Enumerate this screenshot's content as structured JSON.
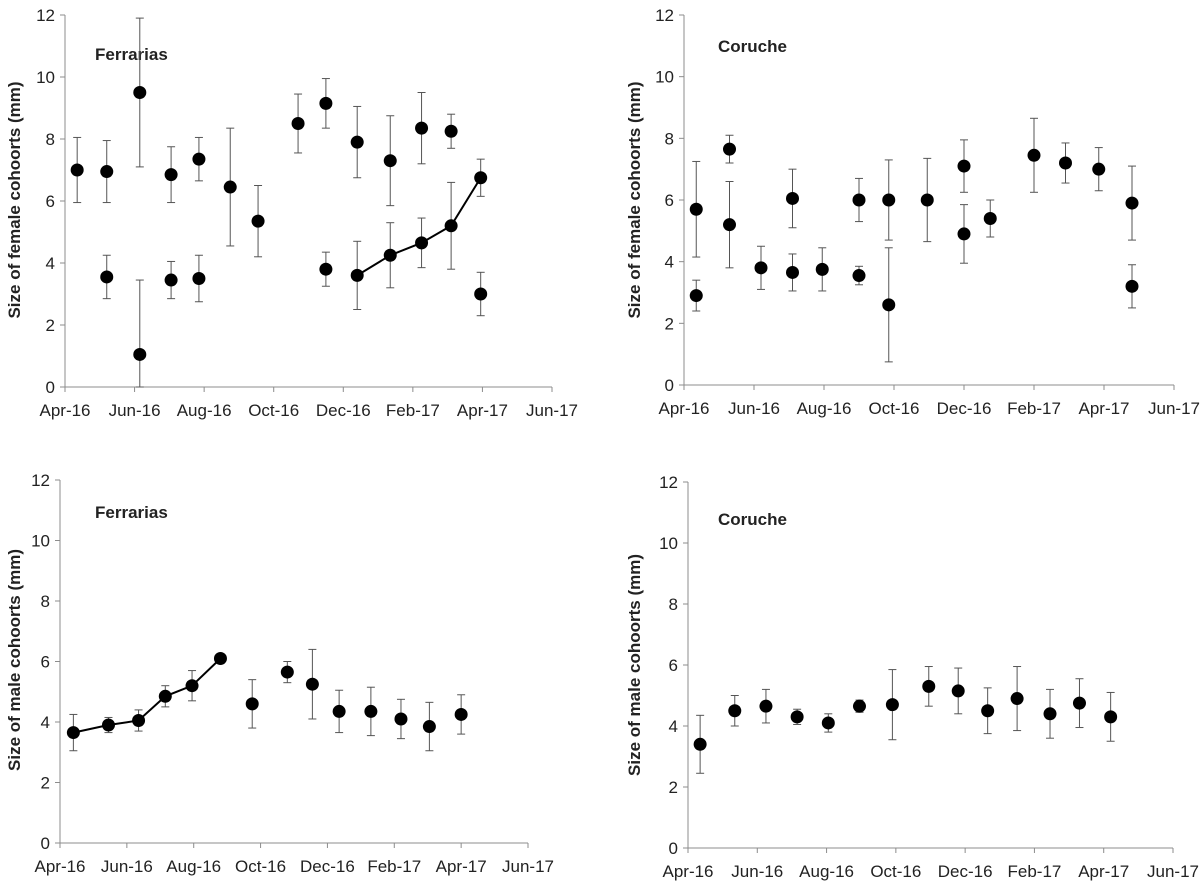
{
  "chart_data": [
    {
      "type": "scatter",
      "title": "Ferrarias",
      "ylabel": "Size  of female cohoorts  (mm)",
      "xlabel": "",
      "x_ticks": [
        "Apr-16",
        "Jun-16",
        "Aug-16",
        "Oct-16",
        "Dec-16",
        "Feb-17",
        "Apr-17",
        "Jun-17"
      ],
      "y_ticks": [
        "0",
        "2",
        "4",
        "6",
        "8",
        "10",
        "12"
      ],
      "xlim": [
        0,
        14
      ],
      "ylim": [
        0,
        12
      ],
      "points": [
        {
          "x": 0.35,
          "y": 7.0,
          "err": 1.05
        },
        {
          "x": 1.2,
          "y": 6.95,
          "err": 1.0
        },
        {
          "x": 1.2,
          "y": 3.55,
          "err": 0.7
        },
        {
          "x": 2.15,
          "y": 9.5,
          "err": 2.4
        },
        {
          "x": 2.15,
          "y": 1.05,
          "err": 2.4
        },
        {
          "x": 3.05,
          "y": 6.85,
          "err": 0.9
        },
        {
          "x": 3.05,
          "y": 3.45,
          "err": 0.6
        },
        {
          "x": 3.85,
          "y": 7.35,
          "err": 0.7
        },
        {
          "x": 3.85,
          "y": 3.5,
          "err": 0.75
        },
        {
          "x": 4.75,
          "y": 6.45,
          "err": 1.9
        },
        {
          "x": 5.55,
          "y": 5.35,
          "err": 1.15
        },
        {
          "x": 6.7,
          "y": 8.5,
          "err": 0.95
        },
        {
          "x": 7.5,
          "y": 9.15,
          "err": 0.8
        },
        {
          "x": 7.5,
          "y": 3.8,
          "err": 0.55
        },
        {
          "x": 8.4,
          "y": 7.9,
          "err": 1.15
        },
        {
          "x": 8.4,
          "y": 3.6,
          "err": 1.1
        },
        {
          "x": 9.35,
          "y": 7.3,
          "err": 1.45
        },
        {
          "x": 9.35,
          "y": 4.25,
          "err": 1.05
        },
        {
          "x": 10.25,
          "y": 8.35,
          "err": 1.15
        },
        {
          "x": 10.25,
          "y": 4.65,
          "err": 0.8
        },
        {
          "x": 11.1,
          "y": 8.25,
          "err": 0.55
        },
        {
          "x": 11.1,
          "y": 5.2,
          "err": 1.4
        },
        {
          "x": 11.95,
          "y": 6.75,
          "err": 0.6
        },
        {
          "x": 11.95,
          "y": 3.0,
          "err": 0.7
        }
      ],
      "line": [
        [
          8.4,
          3.6
        ],
        [
          9.35,
          4.25
        ],
        [
          10.25,
          4.65
        ],
        [
          11.1,
          5.2
        ],
        [
          11.95,
          6.75
        ]
      ]
    },
    {
      "type": "scatter",
      "title": "Coruche",
      "ylabel": "Size  of female cohoorts  (mm)",
      "xlabel": "",
      "x_ticks": [
        "Apr-16",
        "Jun-16",
        "Aug-16",
        "Oct-16",
        "Dec-16",
        "Feb-17",
        "Apr-17",
        "Jun-17"
      ],
      "y_ticks": [
        "0",
        "2",
        "4",
        "6",
        "8",
        "10",
        "12"
      ],
      "xlim": [
        0,
        14
      ],
      "ylim": [
        0,
        12
      ],
      "points": [
        {
          "x": 0.35,
          "y": 5.7,
          "err": 1.55
        },
        {
          "x": 0.35,
          "y": 2.9,
          "err": 0.5
        },
        {
          "x": 1.3,
          "y": 7.65,
          "err": 0.45
        },
        {
          "x": 1.3,
          "y": 5.2,
          "err": 1.4
        },
        {
          "x": 2.2,
          "y": 3.8,
          "err": 0.7
        },
        {
          "x": 3.1,
          "y": 6.05,
          "err": 0.95
        },
        {
          "x": 3.1,
          "y": 3.65,
          "err": 0.6
        },
        {
          "x": 3.95,
          "y": 3.75,
          "err": 0.7
        },
        {
          "x": 5.0,
          "y": 6.0,
          "err": 0.7
        },
        {
          "x": 5.0,
          "y": 3.55,
          "err": 0.3
        },
        {
          "x": 5.85,
          "y": 6.0,
          "err": 1.3
        },
        {
          "x": 5.85,
          "y": 2.6,
          "err": 1.85
        },
        {
          "x": 6.95,
          "y": 6.0,
          "err": 1.35
        },
        {
          "x": 8.0,
          "y": 7.1,
          "err": 0.85
        },
        {
          "x": 8.0,
          "y": 4.9,
          "err": 0.95
        },
        {
          "x": 8.75,
          "y": 5.4,
          "err": 0.6
        },
        {
          "x": 10.0,
          "y": 7.45,
          "err": 1.2
        },
        {
          "x": 10.9,
          "y": 7.2,
          "err": 0.65
        },
        {
          "x": 11.85,
          "y": 7.0,
          "err": 0.7
        },
        {
          "x": 12.8,
          "y": 5.9,
          "err": 1.2
        },
        {
          "x": 12.8,
          "y": 3.2,
          "err": 0.7
        }
      ],
      "line": []
    },
    {
      "type": "scatter",
      "title": "Ferrarias",
      "ylabel": "Size  of male cohoorts  (mm)",
      "xlabel": "",
      "x_ticks": [
        "Apr-16",
        "Jun-16",
        "Aug-16",
        "Oct-16",
        "Dec-16",
        "Feb-17",
        "Apr-17",
        "Jun-17"
      ],
      "y_ticks": [
        "0",
        "2",
        "4",
        "6",
        "8",
        "10",
        "12"
      ],
      "xlim": [
        0,
        14
      ],
      "ylim": [
        0,
        12
      ],
      "points": [
        {
          "x": 0.4,
          "y": 3.65,
          "err": 0.6
        },
        {
          "x": 1.45,
          "y": 3.9,
          "err": 0.25
        },
        {
          "x": 2.35,
          "y": 4.05,
          "err": 0.35
        },
        {
          "x": 3.15,
          "y": 4.85,
          "err": 0.35
        },
        {
          "x": 3.95,
          "y": 5.2,
          "err": 0.5
        },
        {
          "x": 4.8,
          "y": 6.1,
          "err": 0.1
        },
        {
          "x": 5.75,
          "y": 4.6,
          "err": 0.8
        },
        {
          "x": 6.8,
          "y": 5.65,
          "err": 0.35
        },
        {
          "x": 7.55,
          "y": 5.25,
          "err": 1.15
        },
        {
          "x": 8.35,
          "y": 4.35,
          "err": 0.7
        },
        {
          "x": 9.3,
          "y": 4.35,
          "err": 0.8
        },
        {
          "x": 10.2,
          "y": 4.1,
          "err": 0.65
        },
        {
          "x": 11.05,
          "y": 3.85,
          "err": 0.8
        },
        {
          "x": 12.0,
          "y": 4.25,
          "err": 0.65
        }
      ],
      "line": [
        [
          0.4,
          3.65
        ],
        [
          1.45,
          3.9
        ],
        [
          2.35,
          4.05
        ],
        [
          3.15,
          4.85
        ],
        [
          3.95,
          5.2
        ],
        [
          4.8,
          6.1
        ]
      ]
    },
    {
      "type": "scatter",
      "title": "Coruche",
      "ylabel": "Size  of male cohoorts  (mm)",
      "xlabel": "",
      "x_ticks": [
        "Apr-16",
        "Jun-16",
        "Aug-16",
        "Oct-16",
        "Dec-16",
        "Feb-17",
        "Apr-17",
        "Jun-17"
      ],
      "y_ticks": [
        "0",
        "2",
        "4",
        "6",
        "8",
        "10",
        "12"
      ],
      "xlim": [
        0,
        14
      ],
      "ylim": [
        0,
        12
      ],
      "points": [
        {
          "x": 0.35,
          "y": 3.4,
          "err": 0.95
        },
        {
          "x": 1.35,
          "y": 4.5,
          "err": 0.5
        },
        {
          "x": 2.25,
          "y": 4.65,
          "err": 0.55
        },
        {
          "x": 3.15,
          "y": 4.3,
          "err": 0.25
        },
        {
          "x": 4.05,
          "y": 4.1,
          "err": 0.3
        },
        {
          "x": 4.95,
          "y": 4.65,
          "err": 0.2
        },
        {
          "x": 5.9,
          "y": 4.7,
          "err": 1.15
        },
        {
          "x": 6.95,
          "y": 5.3,
          "err": 0.65
        },
        {
          "x": 7.8,
          "y": 5.15,
          "err": 0.75
        },
        {
          "x": 8.65,
          "y": 4.5,
          "err": 0.75
        },
        {
          "x": 9.5,
          "y": 4.9,
          "err": 1.05
        },
        {
          "x": 10.45,
          "y": 4.4,
          "err": 0.8
        },
        {
          "x": 11.3,
          "y": 4.75,
          "err": 0.8
        },
        {
          "x": 12.2,
          "y": 4.3,
          "err": 0.8
        }
      ],
      "line": []
    }
  ]
}
